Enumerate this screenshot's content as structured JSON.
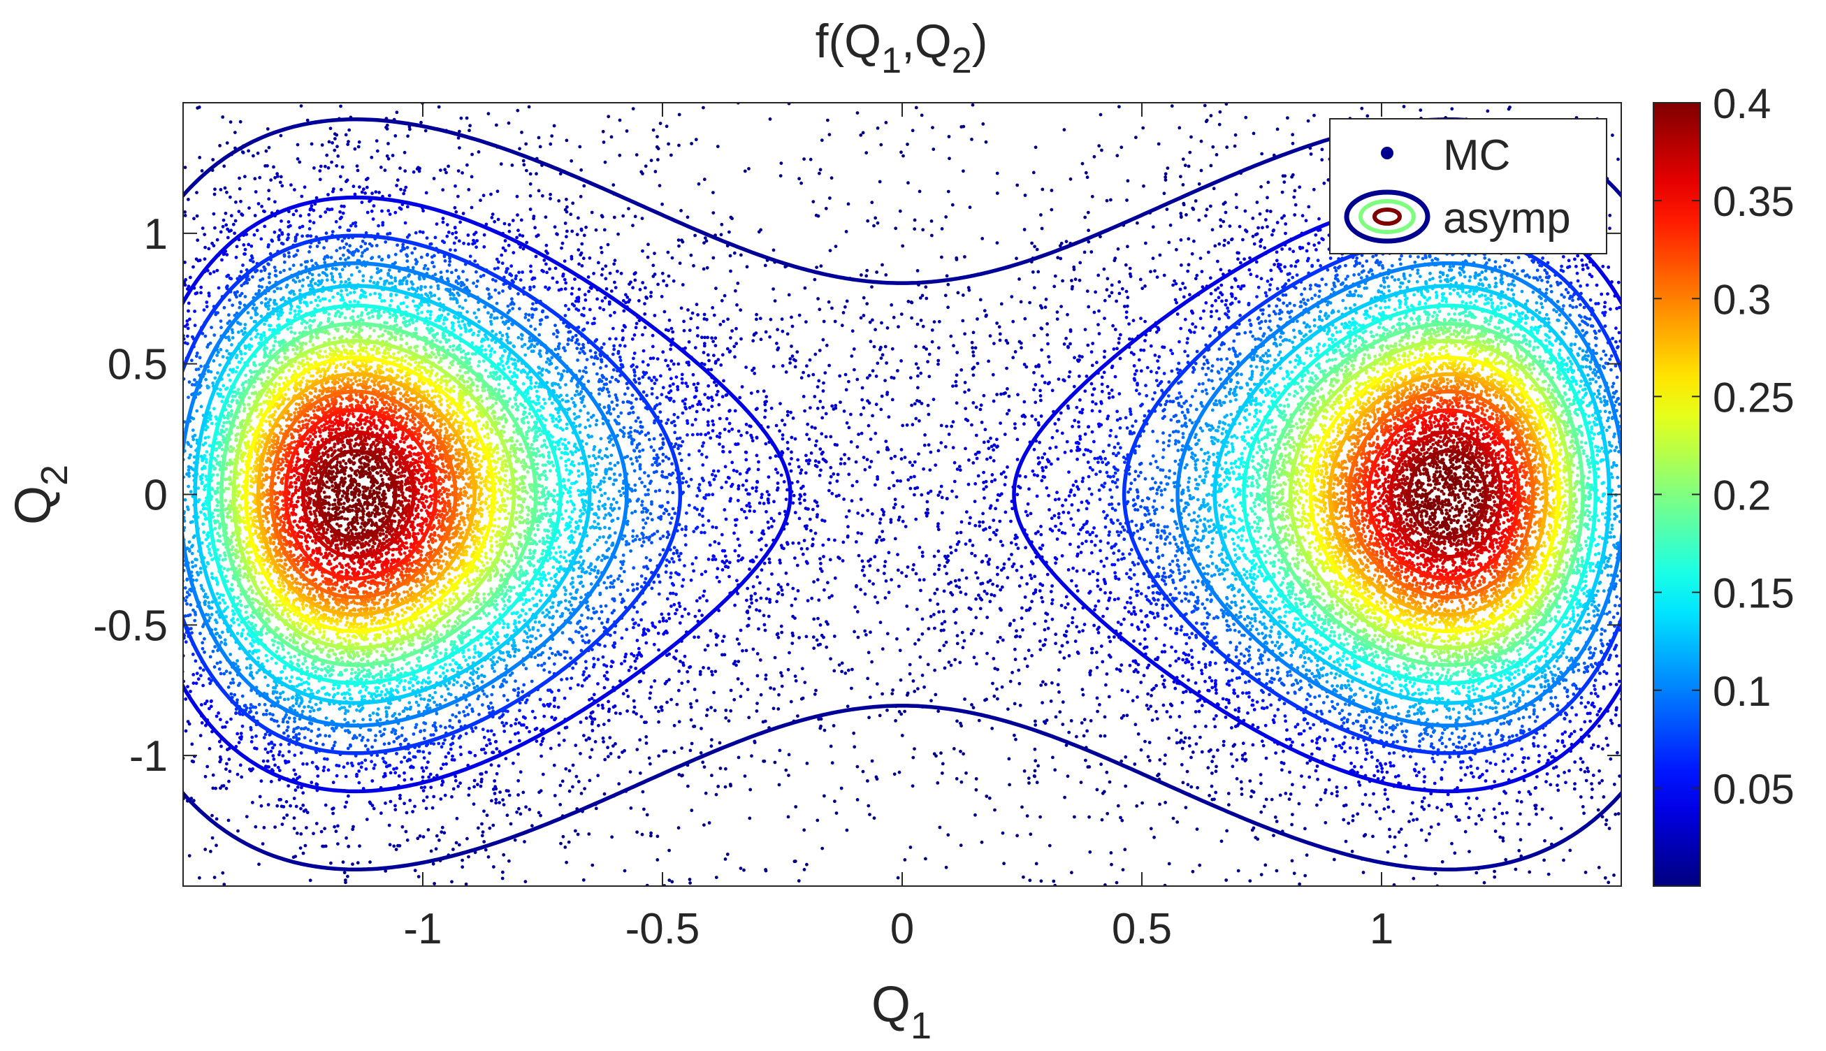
{
  "chart_data": {
    "type": "contour",
    "title": {
      "main": "f(Q",
      "sub1": "1",
      "sep": ",Q",
      "sub2": "2",
      "close": ")"
    },
    "xlabel": {
      "main": "Q",
      "sub": "1"
    },
    "ylabel": {
      "main": "Q",
      "sub": "2"
    },
    "xlim": [
      -1.5,
      1.5
    ],
    "ylim": [
      -1.5,
      1.5
    ],
    "x_ticks": [
      -1,
      -0.5,
      0,
      0.5,
      1
    ],
    "x_tick_labels": [
      "-1",
      "-0.5",
      "0",
      "0.5",
      "1"
    ],
    "y_ticks": [
      1,
      0.5,
      0,
      -0.5,
      -1
    ],
    "y_tick_labels": [
      "1",
      "0.5",
      "0",
      "-0.5",
      "-1"
    ],
    "grid": false,
    "legend": {
      "placement": "top-right",
      "entries": [
        {
          "label": "MC",
          "marker": "dot",
          "color": "#00008f"
        },
        {
          "label": "asymp",
          "marker": "contour-rings",
          "colors": [
            "#00008f",
            "#7fff7f",
            "#800000"
          ]
        }
      ]
    },
    "colorbar": {
      "colormap": "jet",
      "range": [
        0,
        0.4
      ],
      "ticks": [
        0.4,
        0.35,
        0.3,
        0.25,
        0.2,
        0.15,
        0.1,
        0.05
      ],
      "tick_labels": [
        "0.4",
        "0.35",
        "0.3",
        "0.25",
        "0.2",
        "0.15",
        "0.1",
        "0.05"
      ]
    },
    "density": {
      "form": "double-well, peaks near Q1 = ±1.12, Q2 = 0",
      "max": 0.41
    },
    "contour_levels": [
      0.01,
      0.04,
      0.07,
      0.1,
      0.13,
      0.16,
      0.19,
      0.22,
      0.25,
      0.28,
      0.31,
      0.34,
      0.37,
      0.39
    ],
    "mc_points": 30000
  }
}
